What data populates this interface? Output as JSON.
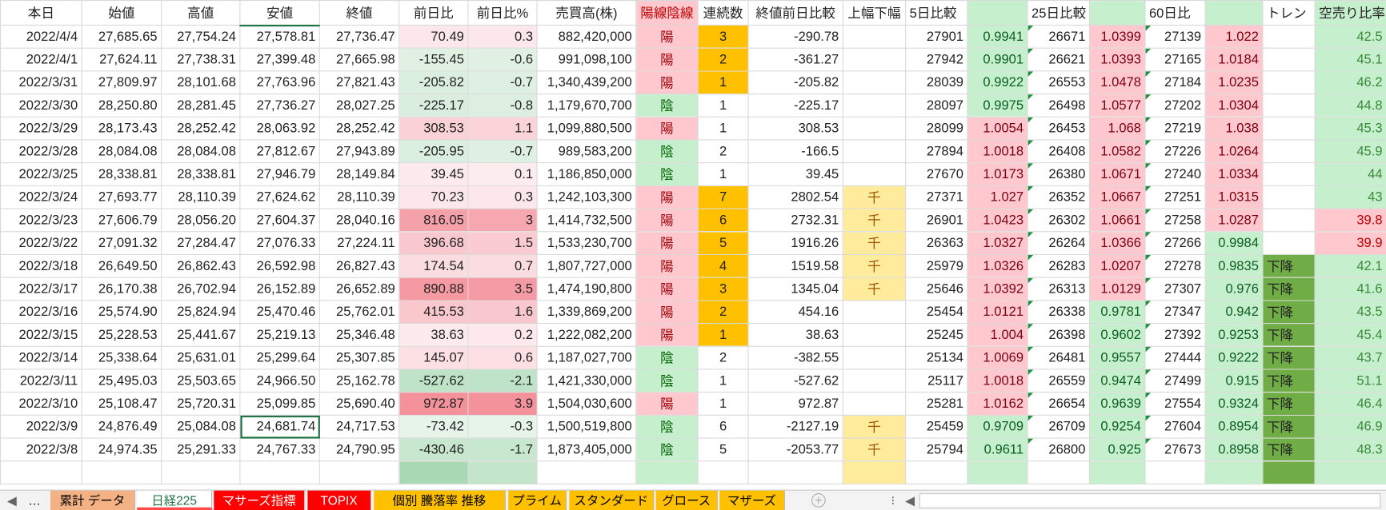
{
  "table": {
    "headers": [
      "本日",
      "始値",
      "高値",
      "安値",
      "終値",
      "前日比",
      "前日比%",
      "売買高(株)",
      "陽線陰線",
      "連続数",
      "終値前日比較",
      "上幅下幅",
      "5日比較",
      null,
      "25日比較",
      null,
      "60日比",
      null,
      "トレン",
      "空売り比率"
    ],
    "rows": [
      [
        "2022/4/4",
        "27,685.65",
        "27,754.24",
        "27,578.81",
        "27,736.47",
        "70.49",
        "0.3",
        "882,420,000",
        "陽",
        "3",
        "-290.78",
        null,
        "27901",
        "0.9941",
        "26671",
        "1.0399",
        "27139",
        "1.022",
        null,
        "42.5"
      ],
      [
        "2022/4/1",
        "27,624.11",
        "27,738.31",
        "27,399.48",
        "27,665.98",
        "-155.45",
        "-0.6",
        "991,098,100",
        "陽",
        "2",
        "-361.27",
        null,
        "27942",
        "0.9901",
        "26621",
        "1.0393",
        "27165",
        "1.0184",
        null,
        "45.1"
      ],
      [
        "2022/3/31",
        "27,809.97",
        "28,101.68",
        "27,763.96",
        "27,821.43",
        "-205.82",
        "-0.7",
        "1,340,439,200",
        "陽",
        "1",
        "-205.82",
        null,
        "28039",
        "0.9922",
        "26553",
        "1.0478",
        "27184",
        "1.0235",
        null,
        "46.2"
      ],
      [
        "2022/3/30",
        "28,250.80",
        "28,281.45",
        "27,736.27",
        "28,027.25",
        "-225.17",
        "-0.8",
        "1,179,670,700",
        "陰",
        "1",
        "-225.17",
        null,
        "28097",
        "0.9975",
        "26498",
        "1.0577",
        "27202",
        "1.0304",
        null,
        "44.8"
      ],
      [
        "2022/3/29",
        "28,173.43",
        "28,252.42",
        "28,063.92",
        "28,252.42",
        "308.53",
        "1.1",
        "1,099,880,500",
        "陽",
        "1",
        "308.53",
        null,
        "28099",
        "1.0054",
        "26453",
        "1.068",
        "27219",
        "1.038",
        null,
        "45.3"
      ],
      [
        "2022/3/28",
        "28,084.08",
        "28,084.08",
        "27,812.67",
        "27,943.89",
        "-205.95",
        "-0.7",
        "989,583,200",
        "陰",
        "2",
        "-166.5",
        null,
        "27894",
        "1.0018",
        "26408",
        "1.0582",
        "27226",
        "1.0264",
        null,
        "45.9"
      ],
      [
        "2022/3/25",
        "28,338.81",
        "28,338.81",
        "27,946.79",
        "28,149.84",
        "39.45",
        "0.1",
        "1,186,850,000",
        "陰",
        "1",
        "39.45",
        null,
        "27670",
        "1.0173",
        "26380",
        "1.0671",
        "27240",
        "1.0334",
        null,
        "44"
      ],
      [
        "2022/3/24",
        "27,693.77",
        "28,110.39",
        "27,624.62",
        "28,110.39",
        "70.23",
        "0.3",
        "1,242,103,300",
        "陽",
        "7",
        "2802.54",
        "千",
        "27371",
        "1.027",
        "26352",
        "1.0667",
        "27251",
        "1.0315",
        null,
        "43"
      ],
      [
        "2022/3/23",
        "27,606.79",
        "28,056.20",
        "27,604.37",
        "28,040.16",
        "816.05",
        "3",
        "1,414,732,500",
        "陽",
        "6",
        "2732.31",
        "千",
        "26901",
        "1.0423",
        "26302",
        "1.0661",
        "27258",
        "1.0287",
        null,
        "39.8"
      ],
      [
        "2022/3/22",
        "27,091.32",
        "27,284.47",
        "27,076.33",
        "27,224.11",
        "396.68",
        "1.5",
        "1,533,230,700",
        "陽",
        "5",
        "1916.26",
        "千",
        "26363",
        "1.0327",
        "26264",
        "1.0366",
        "27266",
        "0.9984",
        null,
        "39.9"
      ],
      [
        "2022/3/18",
        "26,649.50",
        "26,862.43",
        "26,592.98",
        "26,827.43",
        "174.54",
        "0.7",
        "1,807,727,000",
        "陽",
        "4",
        "1519.58",
        "千",
        "25979",
        "1.0326",
        "26283",
        "1.0207",
        "27278",
        "0.9835",
        "下降",
        "42.1"
      ],
      [
        "2022/3/17",
        "26,170.38",
        "26,702.94",
        "26,152.89",
        "26,652.89",
        "890.88",
        "3.5",
        "1,474,190,800",
        "陽",
        "3",
        "1345.04",
        "千",
        "25646",
        "1.0392",
        "26313",
        "1.0129",
        "27307",
        "0.976",
        "下降",
        "41.6"
      ],
      [
        "2022/3/16",
        "25,574.90",
        "25,824.94",
        "25,470.46",
        "25,762.01",
        "415.53",
        "1.6",
        "1,339,869,200",
        "陽",
        "2",
        "454.16",
        null,
        "25454",
        "1.0121",
        "26338",
        "0.9781",
        "27347",
        "0.942",
        "下降",
        "43.5"
      ],
      [
        "2022/3/15",
        "25,228.53",
        "25,441.67",
        "25,219.13",
        "25,346.48",
        "38.63",
        "0.2",
        "1,222,082,200",
        "陽",
        "1",
        "38.63",
        null,
        "25245",
        "1.004",
        "26398",
        "0.9602",
        "27392",
        "0.9253",
        "下降",
        "45.4"
      ],
      [
        "2022/3/14",
        "25,338.64",
        "25,631.01",
        "25,299.64",
        "25,307.85",
        "145.07",
        "0.6",
        "1,187,027,700",
        "陰",
        "2",
        "-382.55",
        null,
        "25134",
        "1.0069",
        "26481",
        "0.9557",
        "27444",
        "0.9222",
        "下降",
        "43.7"
      ],
      [
        "2022/3/11",
        "25,495.03",
        "25,503.65",
        "24,966.50",
        "25,162.78",
        "-527.62",
        "-2.1",
        "1,421,330,000",
        "陰",
        "1",
        "-527.62",
        null,
        "25117",
        "1.0018",
        "26559",
        "0.9474",
        "27499",
        "0.915",
        "下降",
        "51.1"
      ],
      [
        "2022/3/10",
        "25,108.47",
        "25,720.31",
        "25,099.85",
        "25,690.40",
        "972.87",
        "3.9",
        "1,504,030,600",
        "陽",
        "1",
        "972.87",
        null,
        "25281",
        "1.0162",
        "26654",
        "0.9639",
        "27554",
        "0.9324",
        "下降",
        "46.4"
      ],
      [
        "2022/3/9",
        "24,876.49",
        "25,084.08",
        "24,681.74",
        "24,717.53",
        "-73.42",
        "-0.3",
        "1,500,519,800",
        "陰",
        "6",
        "-2127.19",
        "千",
        "25459",
        "0.9709",
        "26709",
        "0.9254",
        "27604",
        "0.8954",
        "下降",
        "46.9"
      ],
      [
        "2022/3/8",
        "24,974.35",
        "25,291.33",
        "24,767.33",
        "24,790.95",
        "-430.46",
        "-1.7",
        "1,873,405,000",
        "陰",
        "5",
        "-2053.77",
        "千",
        "25794",
        "0.9611",
        "26800",
        "0.925",
        "27673",
        "0.8958",
        "下降",
        "48.3"
      ]
    ]
  },
  "tabs": [
    "…",
    "累計 データ",
    "日経225",
    "マサーズ指標",
    "TOPIX",
    "個別 騰落率 推移",
    "プライム",
    "スタンダード",
    "グロース",
    "マザーズ"
  ]
}
